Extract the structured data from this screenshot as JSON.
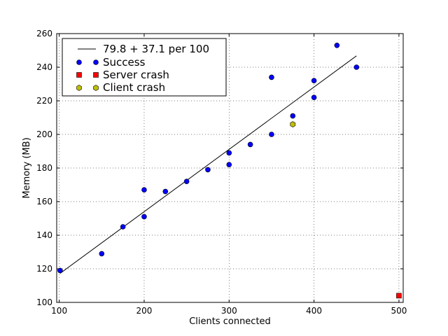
{
  "chart_data": {
    "type": "scatter",
    "title": "",
    "xlabel": "Clients connected",
    "ylabel": "Memory (MB)",
    "xlim": [
      97,
      505
    ],
    "ylim": [
      100,
      260
    ],
    "xticks": [
      100,
      200,
      300,
      400,
      500
    ],
    "yticks": [
      100,
      120,
      140,
      160,
      180,
      200,
      220,
      240,
      260
    ],
    "grid": true,
    "legend_position": "top-left",
    "series": [
      {
        "name": "Success",
        "marker": "circle",
        "color": "#0000ff",
        "points": [
          {
            "x": 101,
            "y": 119
          },
          {
            "x": 150,
            "y": 129
          },
          {
            "x": 175,
            "y": 145
          },
          {
            "x": 200,
            "y": 151
          },
          {
            "x": 200,
            "y": 167
          },
          {
            "x": 225,
            "y": 166
          },
          {
            "x": 250,
            "y": 172
          },
          {
            "x": 275,
            "y": 179
          },
          {
            "x": 300,
            "y": 182
          },
          {
            "x": 300,
            "y": 189
          },
          {
            "x": 325,
            "y": 194
          },
          {
            "x": 350,
            "y": 200
          },
          {
            "x": 350,
            "y": 234
          },
          {
            "x": 375,
            "y": 211
          },
          {
            "x": 400,
            "y": 222
          },
          {
            "x": 400,
            "y": 232
          },
          {
            "x": 427,
            "y": 253
          },
          {
            "x": 450,
            "y": 240
          }
        ]
      },
      {
        "name": "Server crash",
        "marker": "square",
        "color": "#ff0000",
        "points": [
          {
            "x": 500,
            "y": 104
          }
        ]
      },
      {
        "name": "Client crash",
        "marker": "hexagon",
        "color": "#bfbf00",
        "points": [
          {
            "x": 375,
            "y": 206
          }
        ]
      }
    ],
    "fit_line": {
      "name": "79.8 + 37.1 per 100",
      "color": "#000000",
      "intercept": 79.8,
      "slope_per_100": 37.1,
      "x_range": [
        101,
        450
      ]
    }
  }
}
